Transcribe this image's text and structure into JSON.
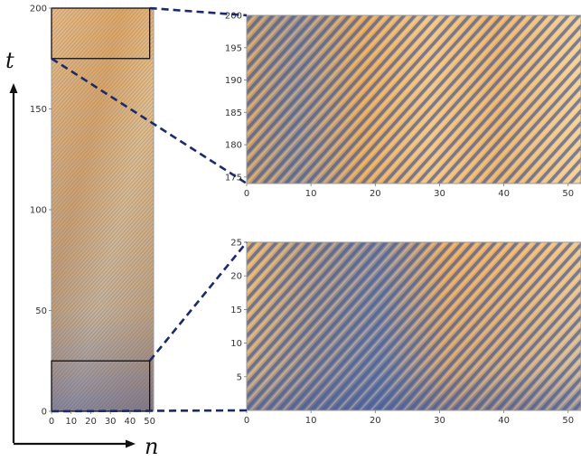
{
  "axes": {
    "x_variable": "n",
    "y_variable": "t"
  },
  "colors": {
    "orange": "#E3A456",
    "light_orange": "#F4CF92",
    "blue": "#5D74A4",
    "deep_blue": "#3B55A0",
    "zoom_line": "#1B2A6B"
  },
  "chart_data": [
    {
      "type": "heatmap",
      "panel": "full-evolution",
      "title": "",
      "xlabel": "n",
      "ylabel": "t",
      "xlim": [
        0,
        52
      ],
      "ylim": [
        0,
        200
      ],
      "x_ticks": [
        0,
        10,
        20,
        30,
        40,
        50
      ],
      "y_ticks": [
        0,
        50,
        100,
        150,
        200
      ],
      "highlight_boxes": [
        {
          "name": "late-time",
          "x": [
            0,
            50
          ],
          "y": [
            175,
            200
          ]
        },
        {
          "name": "early-time",
          "x": [
            0,
            50
          ],
          "y": [
            0,
            25
          ]
        }
      ],
      "colormap": [
        "#3B55A0",
        "#E3A456",
        "#F4CF92"
      ]
    },
    {
      "type": "heatmap",
      "panel": "zoom-late",
      "title": "",
      "xlim": [
        0,
        52
      ],
      "ylim": [
        174,
        200
      ],
      "x_ticks": [
        0,
        10,
        20,
        30,
        40,
        50
      ],
      "y_ticks": [
        175,
        180,
        185,
        190,
        195,
        200
      ],
      "colormap": [
        "#3B55A0",
        "#E3A456",
        "#F4CF92"
      ]
    },
    {
      "type": "heatmap",
      "panel": "zoom-early",
      "title": "",
      "xlim": [
        0,
        52
      ],
      "ylim": [
        0,
        25
      ],
      "x_ticks": [
        0,
        10,
        20,
        30,
        40,
        50
      ],
      "y_ticks": [
        5,
        10,
        15,
        20,
        25
      ],
      "colormap": [
        "#3B55A0",
        "#E3A456",
        "#F4CF92"
      ]
    }
  ]
}
